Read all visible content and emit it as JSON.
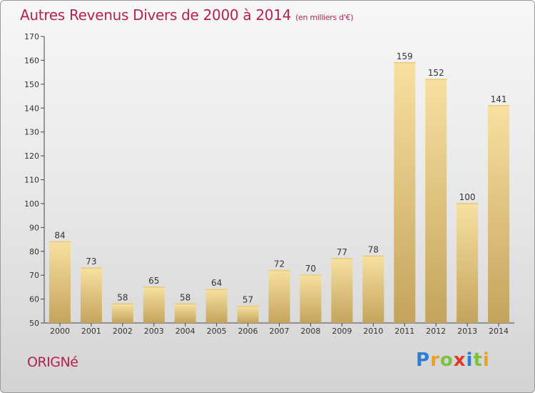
{
  "chart_data": {
    "type": "bar",
    "title": "Autres Revenus Divers de 2000 à 2014",
    "subtitle": "(en milliers d'€)",
    "categories": [
      "2000",
      "2001",
      "2002",
      "2003",
      "2004",
      "2005",
      "2006",
      "2007",
      "2008",
      "2009",
      "2010",
      "2011",
      "2012",
      "2013",
      "2014"
    ],
    "values": [
      84,
      73,
      58,
      65,
      58,
      64,
      57,
      72,
      70,
      77,
      78,
      159,
      152,
      100,
      141
    ],
    "ylim": [
      50,
      170
    ],
    "yticks": [
      50,
      60,
      70,
      80,
      90,
      100,
      110,
      120,
      130,
      140,
      150,
      160,
      170
    ],
    "grid": false,
    "xlabel": "",
    "ylabel": "",
    "colors": {
      "bar_light": "#f5dc96",
      "bar_dark": "#c7a75c",
      "title": "#b5224e"
    }
  },
  "footer": {
    "place": "ORIGNé",
    "logo_letters": [
      "P",
      "r",
      "o",
      "x",
      "i",
      "t",
      "i"
    ],
    "logo_colors": [
      "#2a7fd4",
      "#f0a020",
      "#7cc242",
      "#e23a2a",
      "#2a7fd4",
      "#7cc242",
      "#f0a020"
    ]
  }
}
